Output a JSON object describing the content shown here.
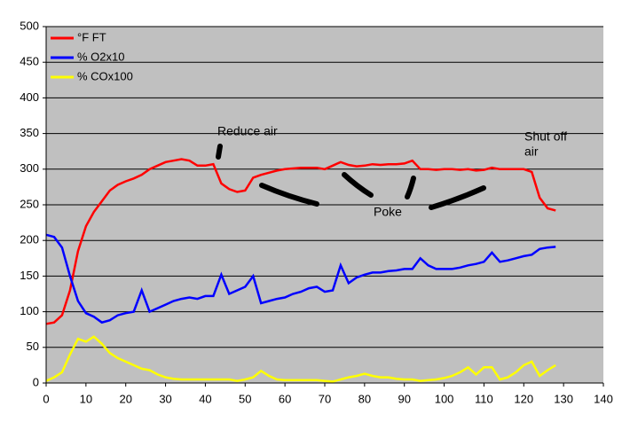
{
  "chart_data": {
    "type": "line",
    "x": [
      0,
      2,
      4,
      6,
      8,
      10,
      12,
      14,
      16,
      18,
      20,
      22,
      24,
      26,
      28,
      30,
      32,
      34,
      36,
      38,
      40,
      42,
      44,
      46,
      48,
      50,
      52,
      54,
      56,
      58,
      60,
      62,
      64,
      66,
      68,
      70,
      72,
      74,
      76,
      78,
      80,
      82,
      84,
      86,
      88,
      90,
      92,
      94,
      96,
      98,
      100,
      102,
      104,
      106,
      108,
      110,
      112,
      114,
      116,
      118,
      120,
      122,
      124,
      126,
      128
    ],
    "series": [
      {
        "name": "°F FT",
        "color": "#ff0000",
        "values": [
          83,
          85,
          95,
          130,
          185,
          220,
          240,
          255,
          270,
          278,
          283,
          287,
          292,
          300,
          305,
          310,
          312,
          314,
          312,
          305,
          305,
          307,
          280,
          272,
          268,
          270,
          288,
          292,
          295,
          298,
          300,
          301,
          302,
          302,
          302,
          300,
          305,
          310,
          306,
          304,
          305,
          307,
          306,
          307,
          307,
          308,
          312,
          300,
          300,
          299,
          300,
          300,
          299,
          300,
          298,
          299,
          302,
          300,
          300,
          300,
          300,
          296,
          260,
          245,
          242
        ]
      },
      {
        "name": "% O2x10",
        "color": "#0000ff",
        "values": [
          208,
          205,
          190,
          150,
          115,
          98,
          93,
          85,
          88,
          95,
          98,
          100,
          130,
          100,
          105,
          110,
          115,
          118,
          120,
          118,
          122,
          122,
          152,
          125,
          130,
          135,
          150,
          112,
          115,
          118,
          120,
          125,
          128,
          133,
          135,
          128,
          130,
          165,
          140,
          148,
          152,
          155,
          155,
          157,
          158,
          160,
          160,
          175,
          165,
          160,
          160,
          160,
          162,
          165,
          167,
          170,
          183,
          170,
          172,
          175,
          178,
          180,
          188,
          190,
          191
        ]
      },
      {
        "name": "% COx100",
        "color": "#ffff00",
        "values": [
          3,
          8,
          15,
          40,
          62,
          58,
          65,
          55,
          42,
          35,
          30,
          25,
          20,
          18,
          12,
          8,
          6,
          5,
          5,
          5,
          5,
          5,
          5,
          5,
          3,
          5,
          8,
          17,
          10,
          5,
          4,
          4,
          4,
          4,
          4,
          3,
          2,
          5,
          8,
          10,
          13,
          10,
          8,
          8,
          6,
          5,
          5,
          3,
          4,
          5,
          7,
          10,
          15,
          22,
          12,
          22,
          22,
          5,
          8,
          15,
          25,
          30,
          10,
          18,
          25
        ]
      }
    ],
    "annotations": [
      "Reduce air",
      "Poke",
      "Shut off",
      "air"
    ],
    "xlim": [
      0,
      140
    ],
    "xticks": [
      0,
      10,
      20,
      30,
      40,
      50,
      60,
      70,
      80,
      90,
      100,
      110,
      120,
      130,
      140
    ],
    "ylim": [
      0,
      500
    ],
    "yticks": [
      0,
      50,
      100,
      150,
      200,
      250,
      300,
      350,
      400,
      450,
      500
    ],
    "grid": true,
    "legend": "top-left"
  }
}
